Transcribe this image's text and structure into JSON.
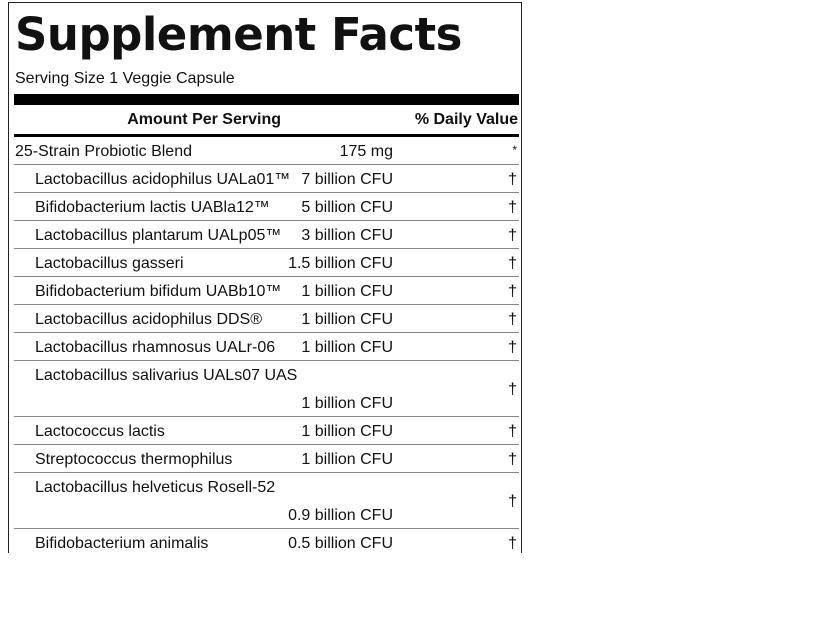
{
  "label": {
    "title": "Supplement Facts",
    "serving_size": "Serving Size 1 Veggie Capsule",
    "header_amount": "Amount Per Serving",
    "header_daily_value": "% Daily Value"
  },
  "blend": {
    "name": "25-Strain Probiotic Blend",
    "amount": "175 mg",
    "daily_value": "*"
  },
  "ingredients": [
    {
      "name": "Lactobacillus acidophilus UALa01™",
      "amount": "7 billion CFU",
      "daily_value": "†"
    },
    {
      "name": "Bifidobacterium lactis UABla12™",
      "amount": "5 billion CFU",
      "daily_value": "†"
    },
    {
      "name": "Lactobacillus plantarum UALp05™",
      "amount": "3 billion CFU",
      "daily_value": "†"
    },
    {
      "name": "Lactobacillus gasseri",
      "amount": "1.5 billion CFU",
      "daily_value": "†"
    },
    {
      "name": "Bifidobacterium bifidum UABb10™",
      "amount": "1 billion CFU",
      "daily_value": "†"
    },
    {
      "name": "Lactobacillus acidophilus DDS®",
      "amount": "1 billion CFU",
      "daily_value": "†"
    },
    {
      "name": "Lactobacillus rhamnosus UALr-06",
      "amount": "1 billion CFU",
      "daily_value": "†"
    },
    {
      "name": "Lactobacillus salivarius UALs07 UAS",
      "amount": "1 billion CFU",
      "daily_value": "†"
    },
    {
      "name": "Lactococcus lactis",
      "amount": "1 billion CFU",
      "daily_value": "†"
    },
    {
      "name": "Streptococcus thermophilus",
      "amount": "1 billion CFU",
      "daily_value": "†"
    },
    {
      "name": "Lactobacillus helveticus Rosell-52",
      "amount": "0.9 billion CFU",
      "daily_value": "†"
    },
    {
      "name": "Bifidobacterium animalis",
      "amount": "0.5 billion CFU",
      "daily_value": "†"
    }
  ]
}
